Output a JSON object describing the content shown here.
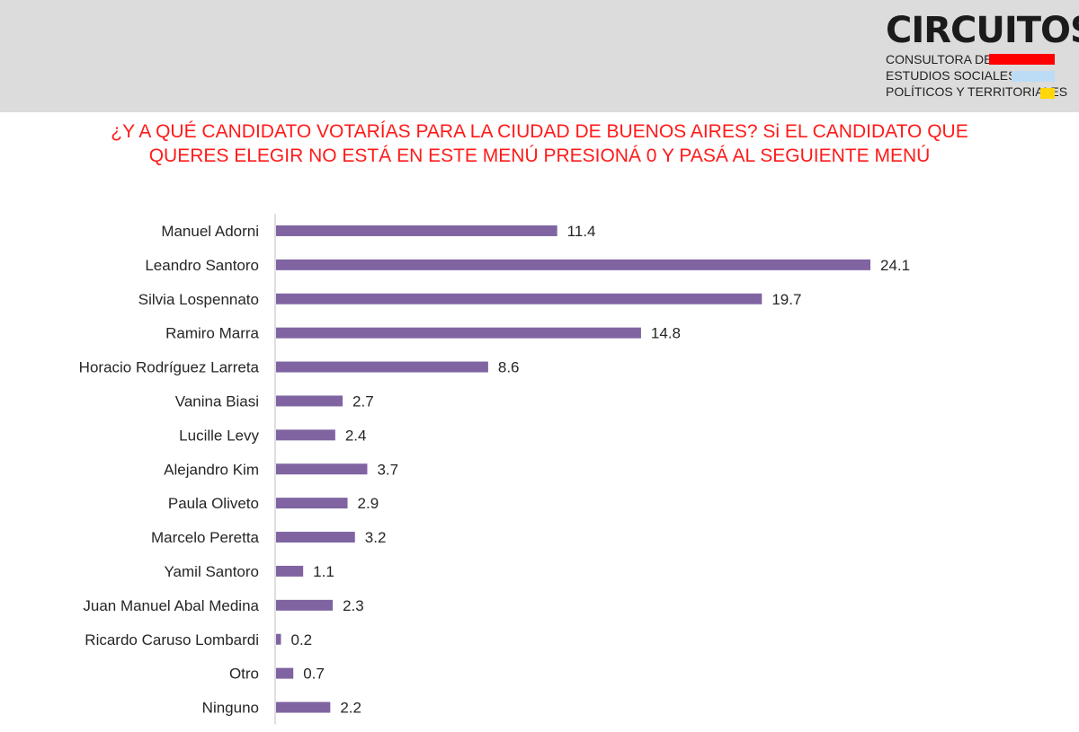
{
  "logo": {
    "title": "CIRCUITOS",
    "line1": "CONSULTORA DE",
    "line2": "ESTUDIOS SOCIALES,",
    "line3": "POLÍTICOS Y TERRITORIALES",
    "bar_colors": [
      "#ff0000",
      "#bcdcf5",
      "#ffd60a"
    ]
  },
  "question": {
    "line1": "¿Y A QUÉ CANDIDATO VOTARÍAS PARA LA CIUDAD DE BUENOS AIRES? Si EL CANDIDATO QUE",
    "line2": "QUERES ELEGIR NO ESTÁ EN ESTE MENÚ PRESIONÁ 0 Y PASÁ AL SEGUIENTE MENÚ"
  },
  "colors": {
    "bar": "#8064a2",
    "question": "#ff1a1a",
    "axis": "#bfbfbf"
  },
  "chart_data": {
    "type": "bar",
    "orientation": "horizontal",
    "title": "¿Y A QUÉ CANDIDATO VOTARÍAS PARA LA CIUDAD DE BUENOS AIRES? Si EL CANDIDATO QUE QUERES ELEGIR NO ESTÁ EN ESTE MENÚ PRESIONÁ 0 Y PASÁ AL SEGUIENTE MENÚ",
    "categories": [
      "Manuel Adorni",
      "Leandro Santoro",
      "Silvia Lospennato",
      "Ramiro Marra",
      "Horacio Rodríguez Larreta",
      "Vanina Biasi",
      "Lucille Levy",
      "Alejandro Kim",
      "Paula Oliveto",
      "Marcelo Peretta",
      "Yamil Santoro",
      "Juan Manuel Abal Medina",
      "Ricardo Caruso Lombardi",
      "Otro",
      "Ninguno"
    ],
    "values": [
      11.4,
      24.1,
      19.7,
      14.8,
      8.6,
      2.7,
      2.4,
      3.7,
      2.9,
      3.2,
      1.1,
      2.3,
      0.2,
      0.7,
      2.2
    ],
    "value_labels": [
      "11.4",
      "24.1",
      "19.7",
      "14.8",
      "8.6",
      "2.7",
      "2.4",
      "3.7",
      "2.9",
      "3.2",
      "1.1",
      "2.3",
      "0.2",
      "0.7",
      "2.2"
    ],
    "xlabel": "",
    "ylabel": "",
    "xlim": [
      0,
      24.1
    ],
    "grid": false,
    "legend": "none"
  }
}
